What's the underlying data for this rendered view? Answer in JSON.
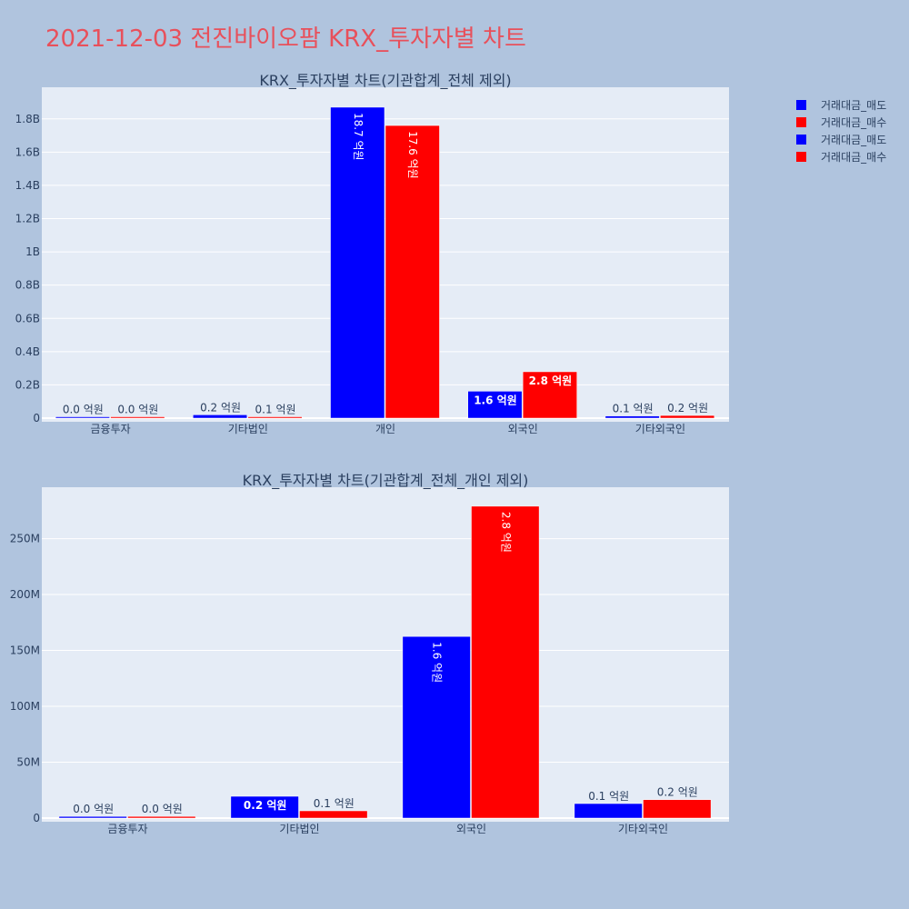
{
  "page_title": "2021-12-03 전진바이오팜 KRX_투자자별 차트",
  "colors": {
    "sell": "#0000ff",
    "buy": "#ff0000",
    "plot_bg": "#e5ecf6",
    "page_bg": "#b0c4de",
    "title": "#e8505b"
  },
  "legend": [
    {
      "label": "거래대금_매도",
      "color": "#0000ff"
    },
    {
      "label": "거래대금_매수",
      "color": "#ff0000"
    },
    {
      "label": "거래대금_매도",
      "color": "#0000ff"
    },
    {
      "label": "거래대금_매수",
      "color": "#ff0000"
    }
  ],
  "chart_data": [
    {
      "type": "bar",
      "title": "KRX_투자자별 차트(기관합계_전체 제외)",
      "categories": [
        "금융투자",
        "기타법인",
        "개인",
        "외국인",
        "기타외국인"
      ],
      "ylim": [
        0,
        1990000000
      ],
      "yticks": [
        0,
        200000000,
        400000000,
        600000000,
        800000000,
        1000000000,
        1200000000,
        1400000000,
        1600000000,
        1800000000
      ],
      "ytick_labels": [
        "0",
        "0.2B",
        "0.4B",
        "0.6B",
        "0.8B",
        "1B",
        "1.2B",
        "1.4B",
        "1.6B",
        "1.8B"
      ],
      "grid": true,
      "series": [
        {
          "name": "거래대금_매도",
          "color": "#0000ff",
          "values": [
            1500000,
            20000000,
            1870000000,
            162000000,
            13000000
          ],
          "labels": [
            "0.0 억원",
            "0.2 억원",
            "18.7 억원",
            "1.6 억원",
            "0.1 억원"
          ]
        },
        {
          "name": "거래대금_매수",
          "color": "#ff0000",
          "values": [
            1500000,
            6000000,
            1760000000,
            279000000,
            16000000
          ],
          "labels": [
            "0.0 억원",
            "0.1 억원",
            "17.6 억원",
            "2.8 억원",
            "0.2 억원"
          ]
        }
      ]
    },
    {
      "type": "bar",
      "title": "KRX_투자자별 차트(기관합계_전체_개인 제외)",
      "categories": [
        "금융투자",
        "기타법인",
        "외국인",
        "기타외국인"
      ],
      "ylim": [
        0,
        296000000
      ],
      "yticks": [
        0,
        50000000,
        100000000,
        150000000,
        200000000,
        250000000
      ],
      "ytick_labels": [
        "0",
        "50M",
        "100M",
        "150M",
        "200M",
        "250M"
      ],
      "grid": true,
      "series": [
        {
          "name": "거래대금_매도",
          "color": "#0000ff",
          "values": [
            1500000,
            19500000,
            162500000,
            13000000
          ],
          "labels": [
            "0.0 억원",
            "0.2 억원",
            "1.6 억원",
            "0.1 억원"
          ]
        },
        {
          "name": "거래대금_매수",
          "color": "#ff0000",
          "values": [
            1500000,
            6500000,
            279000000,
            16500000
          ],
          "labels": [
            "0.0 억원",
            "0.1 억원",
            "2.8 억원",
            "0.2 억원"
          ]
        }
      ]
    }
  ]
}
